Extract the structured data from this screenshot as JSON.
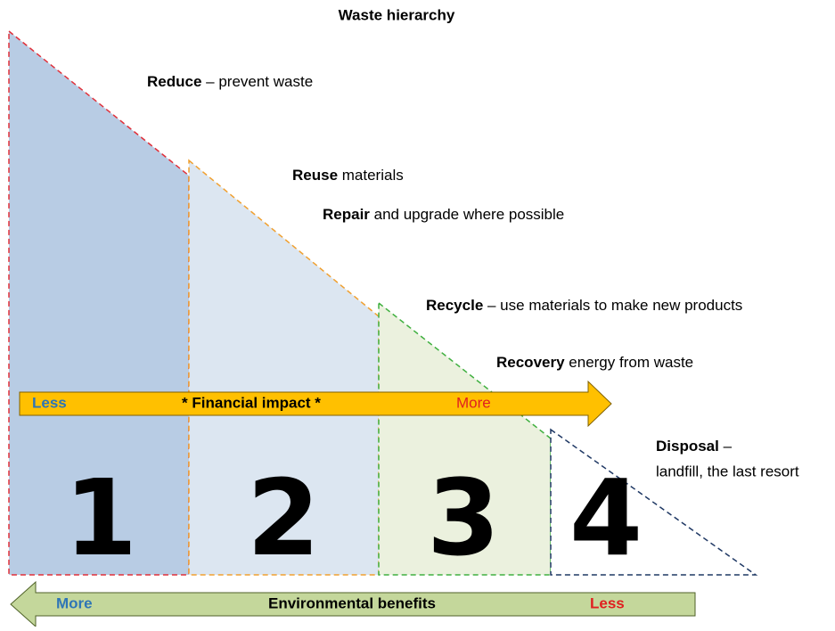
{
  "title": "Waste hierarchy",
  "labels": [
    {
      "term": "Reduce",
      "text": " – prevent waste"
    },
    {
      "term": "Reuse",
      "text": " materials"
    },
    {
      "term": "Repair",
      "text": " and upgrade where possible"
    },
    {
      "term": "Recycle",
      "text": " – use materials to make new products"
    },
    {
      "term": "Recovery",
      "text": " energy from waste"
    },
    {
      "term": "Disposal",
      "text": " –",
      "line2": "landfill, the last resort"
    }
  ],
  "steps": [
    "1",
    "2",
    "3",
    "4"
  ],
  "financial_arrow": {
    "left": "Less",
    "center": "* Financial impact *",
    "right": "More"
  },
  "environment_arrow": {
    "left": "More",
    "center": "Environmental benefits",
    "right": "Less"
  }
}
